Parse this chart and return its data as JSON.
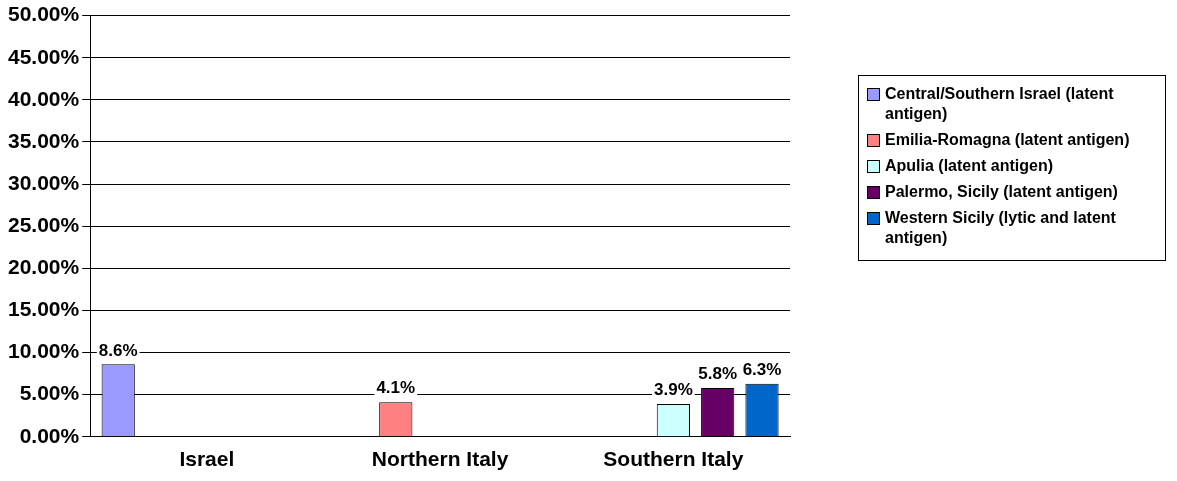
{
  "chart_data": {
    "type": "bar",
    "categories": [
      "Israel",
      "Northern Italy",
      "Southern Italy"
    ],
    "series": [
      {
        "name": "Central/Southern Israel (latent antigen)",
        "color": "#9999ff",
        "values": [
          8.6,
          null,
          null
        ],
        "value_labels": [
          "8.6%",
          null,
          null
        ]
      },
      {
        "name": "Emilia-Romagna (latent antigen)",
        "color": "#ff8080",
        "values": [
          null,
          4.1,
          null
        ],
        "value_labels": [
          null,
          "4.1%",
          null
        ]
      },
      {
        "name": "Apulia (latent antigen)",
        "color": "#ccffff",
        "values": [
          null,
          null,
          3.9
        ],
        "value_labels": [
          null,
          null,
          "3.9%"
        ]
      },
      {
        "name": "Palermo, Sicily (latent antigen)",
        "color": "#660066",
        "values": [
          null,
          null,
          5.8
        ],
        "value_labels": [
          null,
          null,
          "5.8%"
        ]
      },
      {
        "name": "Western Sicily (lytic and latent antigen)",
        "color": "#0066cc",
        "values": [
          null,
          null,
          6.3
        ],
        "value_labels": [
          null,
          null,
          "6.3%"
        ]
      }
    ],
    "ylim": [
      0,
      50
    ],
    "yticks": [
      {
        "value": 0,
        "label": "0.00%"
      },
      {
        "value": 5,
        "label": "5.00%"
      },
      {
        "value": 10,
        "label": "10.00%"
      },
      {
        "value": 15,
        "label": "15.00%"
      },
      {
        "value": 20,
        "label": "20.00%"
      },
      {
        "value": 25,
        "label": "25.00%"
      },
      {
        "value": 30,
        "label": "30.00%"
      },
      {
        "value": 35,
        "label": "35.00%"
      },
      {
        "value": 40,
        "label": "40.00%"
      },
      {
        "value": 45,
        "label": "45.00%"
      },
      {
        "value": 50,
        "label": "50.00%"
      }
    ],
    "grid": "y",
    "legend": "right"
  }
}
